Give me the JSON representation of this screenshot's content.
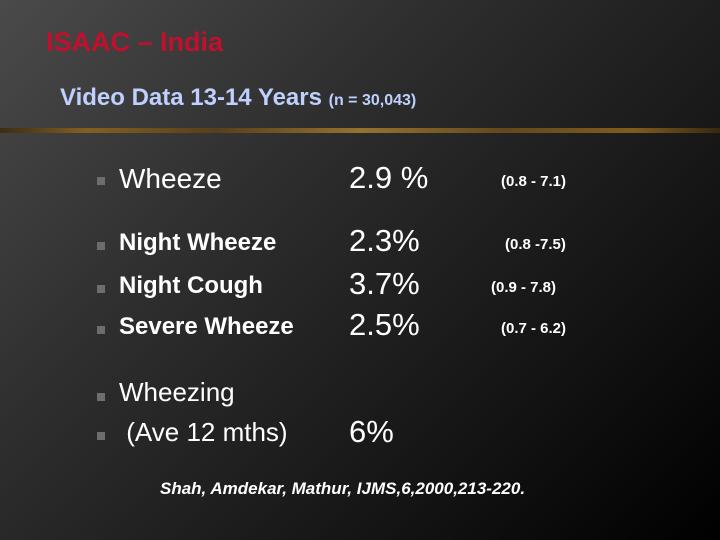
{
  "title": "ISAAC – India",
  "subtitle": {
    "main": "Video Data 13-14 Years",
    "sample": "(n = 30,043)"
  },
  "rows": [
    {
      "label": "Wheeze",
      "value": "2.9 %",
      "ci": "(0.8 - 7.1)"
    },
    {
      "label": "Night Wheeze",
      "value": "2.3%",
      "ci": "(0.8 -7.5)"
    },
    {
      "label": "Night Cough",
      "value": "3.7%",
      "ci": "(0.9 - 7.8)"
    },
    {
      "label": "Severe Wheeze",
      "value": "2.5%",
      "ci": "(0.7 - 6.2)"
    },
    {
      "label": "Wheezing",
      "value": "",
      "ci": ""
    },
    {
      "label": " (Ave 12 mths)",
      "value": "6%",
      "ci": ""
    }
  ],
  "citation": "Shah, Amdekar, Mathur, IJMS,6,2000,213-220."
}
